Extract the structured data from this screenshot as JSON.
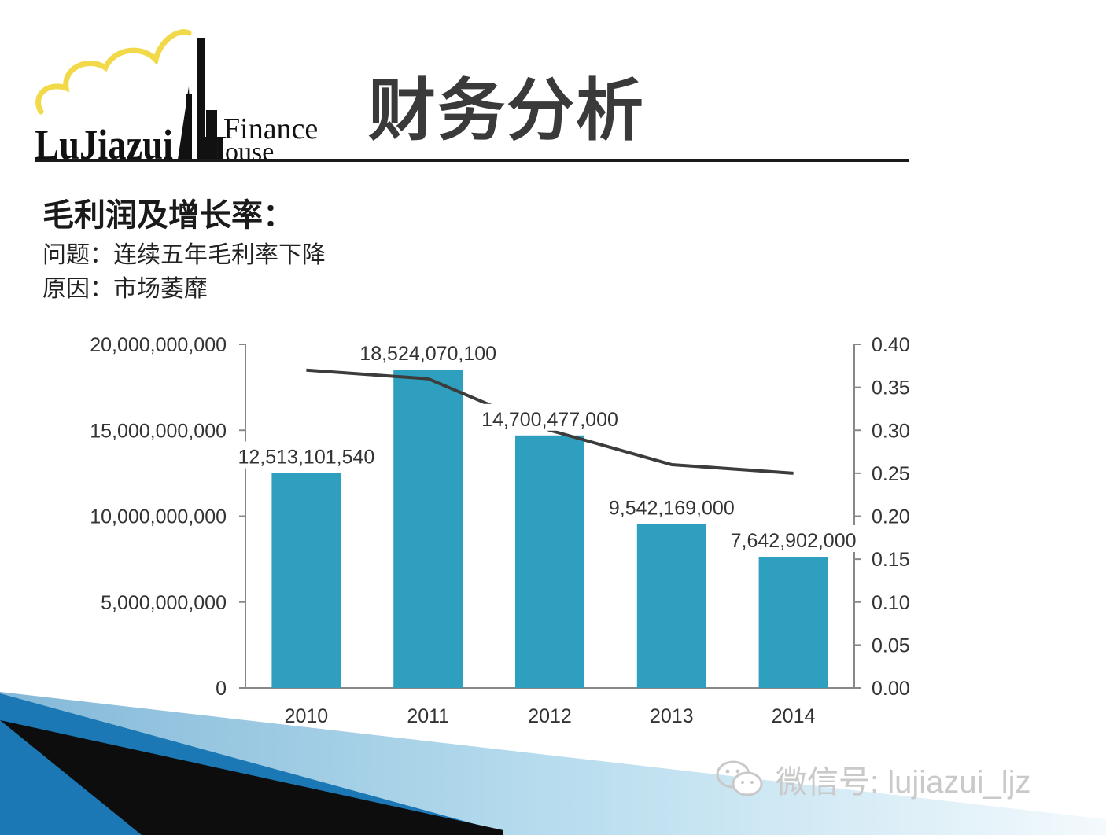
{
  "logo": {
    "brand_main": "LuJiazui",
    "brand_finance": "Finance",
    "brand_house": "ouse"
  },
  "header": {
    "title": "财务分析"
  },
  "section": {
    "heading": "毛利润及增长率：",
    "issue": "问题：连续五年毛利率下降",
    "cause": "原因：市场萎靡"
  },
  "watermark": {
    "text": "微信号: lujiazui_ljz",
    "icon": "wechat-icon"
  },
  "colors": {
    "bar": "#2f9fbf",
    "line": "#3c3c3c",
    "axis": "#888888"
  },
  "chart_data": {
    "type": "bar",
    "categories": [
      "2010",
      "2011",
      "2012",
      "2013",
      "2014"
    ],
    "series": [
      {
        "values": [
          12513101540,
          18524070100,
          14700477000,
          9542169000,
          7642902000
        ],
        "data_labels": [
          "12,513,101,540",
          "18,524,070,100",
          "14,700,477,000",
          "9,542,169,000",
          "7,642,902,000"
        ]
      },
      {
        "type": "line",
        "axis": "right",
        "values": [
          0.37,
          0.36,
          0.3,
          0.26,
          0.25
        ]
      }
    ],
    "y_left": {
      "ylim": [
        0,
        20000000000
      ],
      "ticks": [
        "0",
        "5,000,000,000",
        "10,000,000,000",
        "15,000,000,000",
        "20,000,000,000"
      ]
    },
    "y_right": {
      "ylim": [
        0,
        0.4
      ],
      "ticks": [
        "0.00",
        "0.05",
        "0.10",
        "0.15",
        "0.20",
        "0.25",
        "0.30",
        "0.35",
        "0.40"
      ]
    },
    "title": "",
    "xlabel": "",
    "ylabel": "",
    "grid": false,
    "legend": "none"
  }
}
